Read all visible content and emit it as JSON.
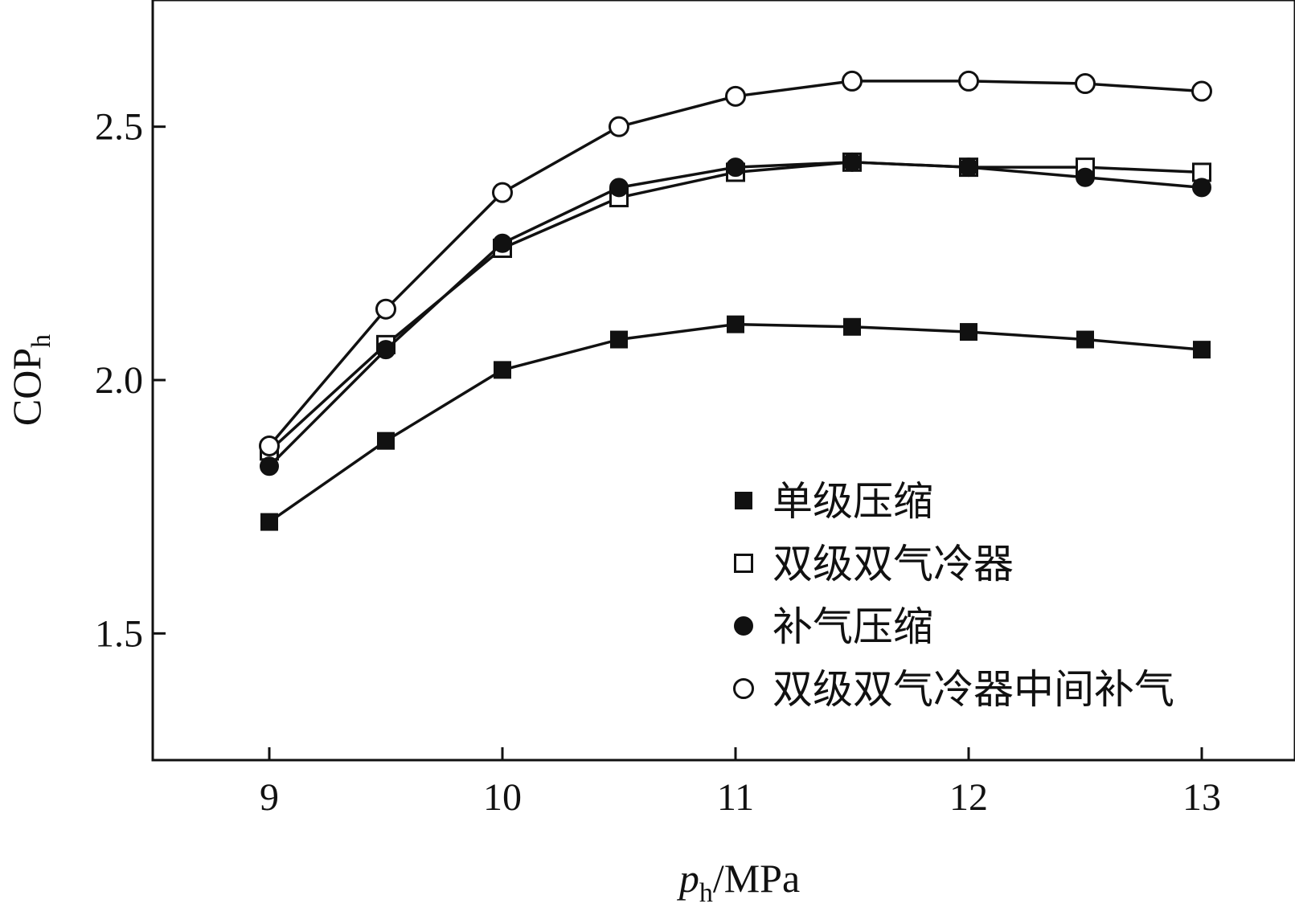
{
  "chart_data": {
    "type": "line",
    "title": "",
    "xlabel": {
      "main": "p",
      "sub": "h",
      "unit": "/MPa"
    },
    "ylabel": {
      "main": "COP",
      "sub": "h"
    },
    "xlim": [
      8.5,
      13.4
    ],
    "ylim": [
      1.25,
      2.75
    ],
    "x_ticks": [
      9,
      10,
      11,
      12,
      13
    ],
    "y_ticks": [
      1.5,
      2.0,
      2.5
    ],
    "x_tick_labels": [
      "9",
      "10",
      "11",
      "12",
      "13"
    ],
    "y_tick_labels": [
      "1.5",
      "2.0",
      "2.5"
    ],
    "grid": false,
    "legend_position": "bottom-right",
    "x": [
      9,
      9.5,
      10,
      10.5,
      11,
      11.5,
      12,
      12.5,
      13
    ],
    "series": [
      {
        "name": "单级压缩",
        "marker": "square-filled",
        "values": [
          1.72,
          1.88,
          2.02,
          2.08,
          2.11,
          2.105,
          2.095,
          2.08,
          2.06
        ]
      },
      {
        "name": "双级双气冷器",
        "marker": "square-open",
        "values": [
          1.86,
          2.07,
          2.26,
          2.36,
          2.41,
          2.43,
          2.42,
          2.42,
          2.41
        ]
      },
      {
        "name": "补气压缩",
        "marker": "circle-filled",
        "values": [
          1.83,
          2.06,
          2.27,
          2.38,
          2.42,
          2.43,
          2.42,
          2.4,
          2.38
        ]
      },
      {
        "name": "双级双气冷器中间补气",
        "marker": "circle-open",
        "values": [
          1.87,
          2.14,
          2.37,
          2.5,
          2.56,
          2.59,
          2.59,
          2.585,
          2.57
        ]
      }
    ]
  }
}
